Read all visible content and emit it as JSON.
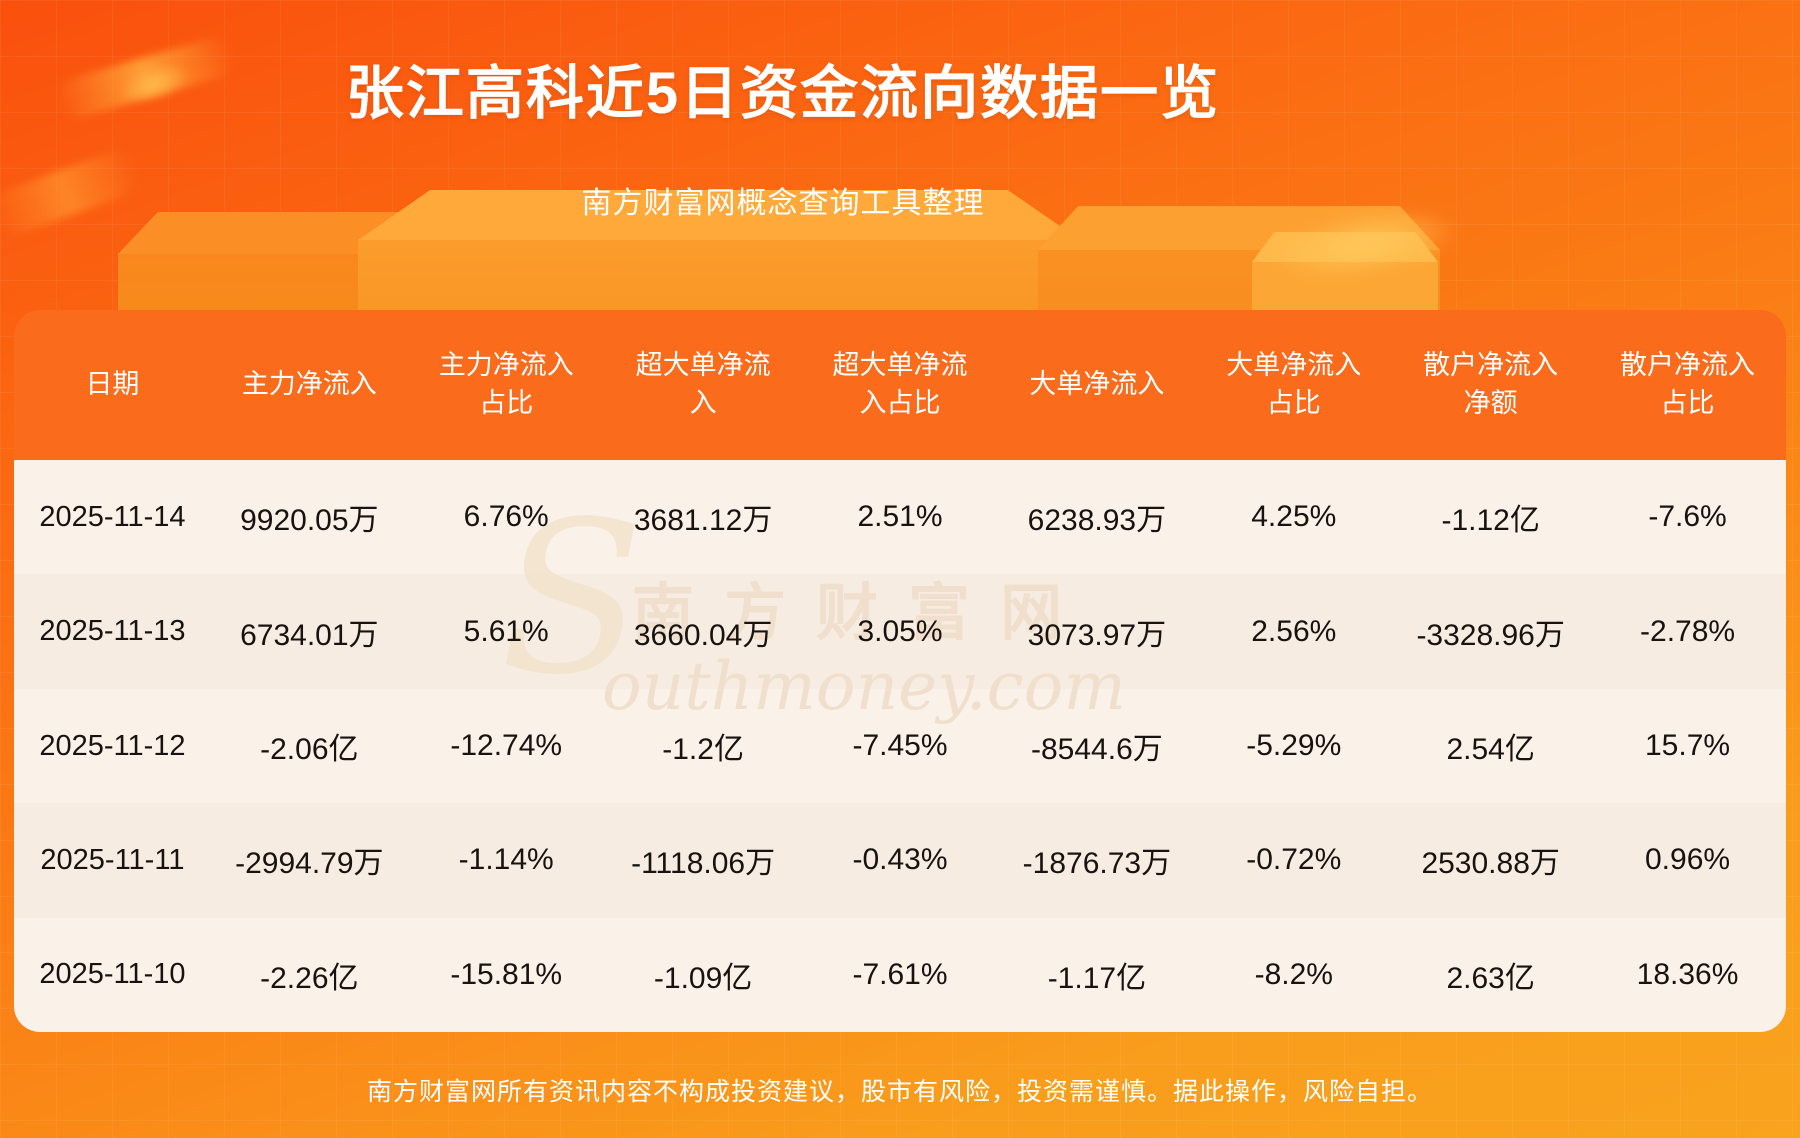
{
  "page": {
    "title": "张江高科近5日资金流向数据一览",
    "subtitle": "南方财富网概念查询工具整理",
    "disclaimer": "南方财富网所有资讯内容不构成投资建议，股市有风险，投资需谨慎。据此操作，风险自担。",
    "watermark": {
      "initial": "S",
      "cn": "南方财富网",
      "en": "outhmoney.com"
    }
  },
  "colors": {
    "background_top": "#fa500d",
    "background_bottom": "#f9a31e",
    "table_header_bg": "#fa6b1b",
    "row_odd_bg": "#faf1e8",
    "row_even_bg": "#f7ece1",
    "body_text": "#181310",
    "header_text": "#ffffff"
  },
  "chart_data": {
    "type": "table",
    "title": "张江高科近5日资金流向数据一览",
    "columns": [
      "日期",
      "主力净流入",
      "主力净流入占比",
      "超大单净流入",
      "超大单净流入占比",
      "大单净流入",
      "大单净流入占比",
      "散户净流入净额",
      "散户净流入占比"
    ],
    "rows": [
      [
        "2025-11-14",
        "9920.05万",
        "6.76%",
        "3681.12万",
        "2.51%",
        "6238.93万",
        "4.25%",
        "-1.12亿",
        "-7.6%"
      ],
      [
        "2025-11-13",
        "6734.01万",
        "5.61%",
        "3660.04万",
        "3.05%",
        "3073.97万",
        "2.56%",
        "-3328.96万",
        "-2.78%"
      ],
      [
        "2025-11-12",
        "-2.06亿",
        "-12.74%",
        "-1.2亿",
        "-7.45%",
        "-8544.6万",
        "-5.29%",
        "2.54亿",
        "15.7%"
      ],
      [
        "2025-11-11",
        "-2994.79万",
        "-1.14%",
        "-1118.06万",
        "-0.43%",
        "-1876.73万",
        "-0.72%",
        "2530.88万",
        "0.96%"
      ],
      [
        "2025-11-10",
        "-2.26亿",
        "-15.81%",
        "-1.09亿",
        "-7.61%",
        "-1.17亿",
        "-8.2%",
        "2.63亿",
        "18.36%"
      ]
    ]
  }
}
